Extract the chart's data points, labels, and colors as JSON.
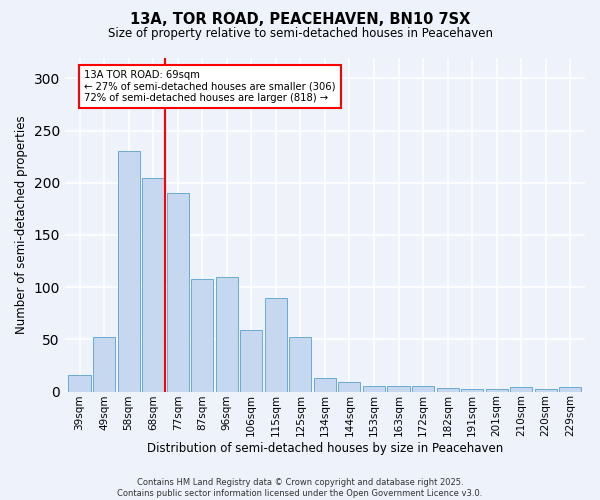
{
  "title": "13A, TOR ROAD, PEACEHAVEN, BN10 7SX",
  "subtitle": "Size of property relative to semi-detached houses in Peacehaven",
  "xlabel": "Distribution of semi-detached houses by size in Peacehaven",
  "ylabel": "Number of semi-detached properties",
  "categories": [
    "39sqm",
    "49sqm",
    "58sqm",
    "68sqm",
    "77sqm",
    "87sqm",
    "96sqm",
    "106sqm",
    "115sqm",
    "125sqm",
    "134sqm",
    "144sqm",
    "153sqm",
    "163sqm",
    "172sqm",
    "182sqm",
    "191sqm",
    "201sqm",
    "210sqm",
    "220sqm",
    "229sqm"
  ],
  "values": [
    16,
    52,
    230,
    205,
    190,
    108,
    110,
    59,
    90,
    52,
    13,
    9,
    5,
    5,
    5,
    3,
    2,
    2,
    4,
    2,
    4
  ],
  "bar_color": "#c5d8f0",
  "bar_edge_color": "#6aaad4",
  "vline_x_index": 3,
  "vline_label": "13A TOR ROAD: 69sqm",
  "pct_smaller": "27%",
  "pct_smaller_n": 306,
  "pct_larger": "72%",
  "pct_larger_n": 818,
  "annotation_box_color": "#ff0000",
  "ylim": [
    0,
    320
  ],
  "yticks": [
    0,
    50,
    100,
    150,
    200,
    250,
    300
  ],
  "footer": "Contains HM Land Registry data © Crown copyright and database right 2025.\nContains public sector information licensed under the Open Government Licence v3.0.",
  "background_color": "#edf2fb"
}
